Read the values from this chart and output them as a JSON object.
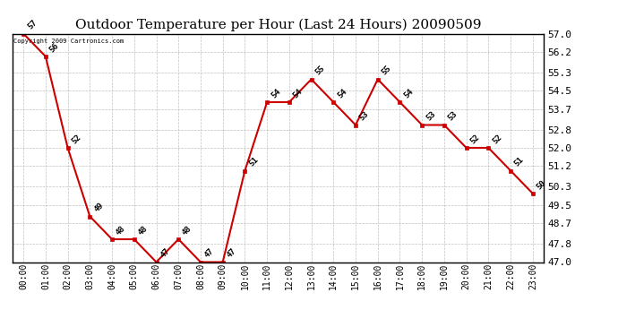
{
  "title": "Outdoor Temperature per Hour (Last 24 Hours) 20090509",
  "copyright": "Copyright 2009 Cartronics.com",
  "hours": [
    "00:00",
    "01:00",
    "02:00",
    "03:00",
    "04:00",
    "05:00",
    "06:00",
    "07:00",
    "08:00",
    "09:00",
    "10:00",
    "11:00",
    "12:00",
    "13:00",
    "14:00",
    "15:00",
    "16:00",
    "17:00",
    "18:00",
    "19:00",
    "20:00",
    "21:00",
    "22:00",
    "23:00"
  ],
  "temps": [
    57,
    56,
    52,
    49,
    48,
    48,
    47,
    48,
    47,
    47,
    51,
    54,
    54,
    55,
    54,
    53,
    55,
    54,
    53,
    53,
    52,
    52,
    51,
    50
  ],
  "ylim_min": 47.0,
  "ylim_max": 57.0,
  "yticks": [
    47.0,
    47.8,
    48.7,
    49.5,
    50.3,
    51.2,
    52.0,
    52.8,
    53.7,
    54.5,
    55.3,
    56.2,
    57.0
  ],
  "line_color": "#cc0000",
  "marker_color": "#cc0000",
  "bg_color": "#ffffff",
  "grid_color": "#c0c0c0",
  "title_fontsize": 11,
  "label_fontsize": 7,
  "annotation_fontsize": 6.5
}
